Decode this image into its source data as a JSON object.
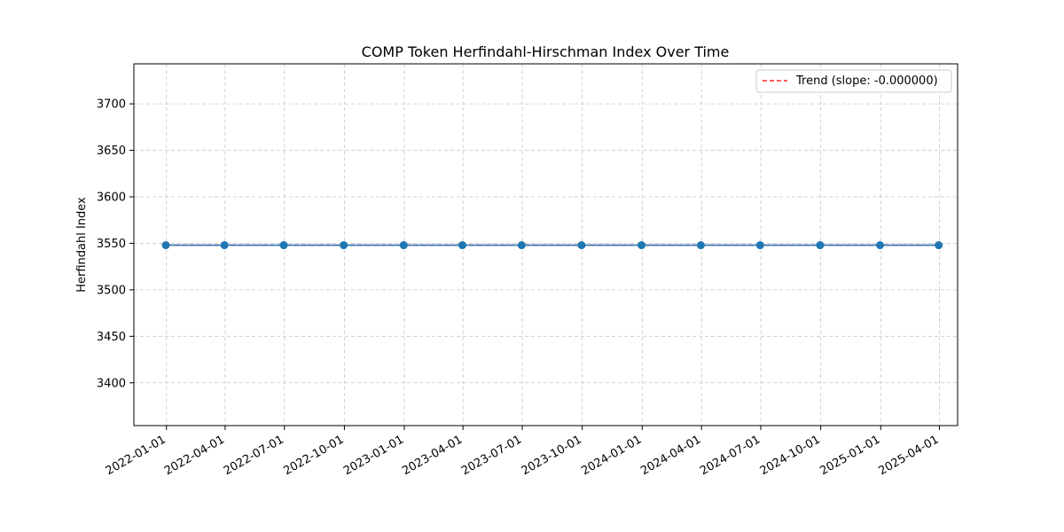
{
  "chart_data": {
    "type": "line",
    "title": "COMP Token Herfindahl-Hirschman Index Over Time",
    "xlabel": "",
    "ylabel": "Herfindahl Index",
    "x_ticks": [
      "2022-01-01",
      "2022-04-01",
      "2022-07-01",
      "2022-10-01",
      "2023-01-01",
      "2023-04-01",
      "2023-07-01",
      "2023-10-01",
      "2024-01-01",
      "2024-04-01",
      "2024-07-01",
      "2024-10-01",
      "2025-01-01",
      "2025-04-01"
    ],
    "y_ticks": [
      3400,
      3450,
      3500,
      3550,
      3600,
      3650,
      3700
    ],
    "xlim": [
      "2021-11-12",
      "2025-04-29"
    ],
    "ylim": [
      3354,
      3743
    ],
    "grid": true,
    "legend_position": "top-right",
    "series": [
      {
        "values_dates": [
          "2021-12-31",
          "2022-03-31",
          "2022-06-30",
          "2022-09-30",
          "2022-12-31",
          "2023-03-31",
          "2023-06-30",
          "2023-09-30",
          "2023-12-31",
          "2024-03-31",
          "2024-06-30",
          "2024-09-30",
          "2024-12-31",
          "2025-03-31"
        ],
        "values": [
          3548,
          3548,
          3548,
          3548,
          3548,
          3548,
          3548,
          3548,
          3548,
          3548,
          3548,
          3548,
          3548,
          3548
        ],
        "color": "#1f77b4",
        "marker": "circle"
      },
      {
        "name": "Trend (slope: -0.000000)",
        "kind": "trend",
        "values_dates": [
          "2021-12-31",
          "2025-03-31"
        ],
        "values": [
          3548,
          3548
        ],
        "color": "#ff0000",
        "style": "dashed"
      }
    ]
  }
}
